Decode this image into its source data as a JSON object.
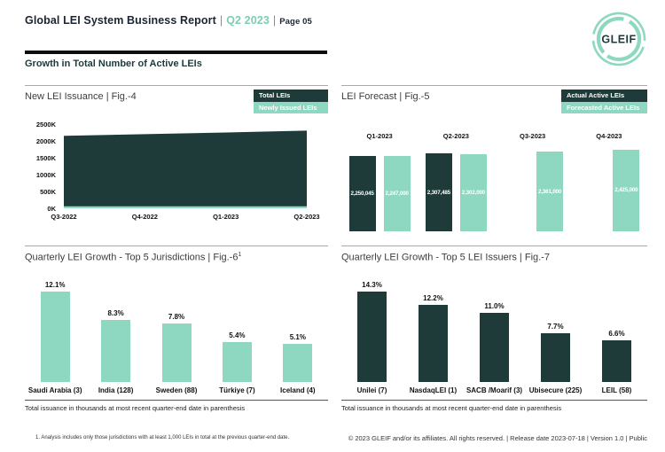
{
  "header": {
    "title": "Global LEI System Business Report",
    "sep": "|",
    "period": "Q2 2023",
    "page": "Page 05",
    "logo_text": "GLEIF"
  },
  "section": {
    "title": "Growth in Total Number of Active LEIs"
  },
  "colors": {
    "dark": "#1e3a39",
    "mint": "#8ed8c1",
    "accent_text": "#7fccb4"
  },
  "chart_data": [
    {
      "type": "area",
      "title": "New LEI Issuance | Fig.-4",
      "legend": [
        {
          "label": "Total LEIs",
          "color": "#1e3a39"
        },
        {
          "label": "Newly Issued LEIs",
          "color": "#8ed8c1"
        }
      ],
      "x": [
        "Q3-2022",
        "Q4-2022",
        "Q1-2023",
        "Q2-2023"
      ],
      "series": [
        {
          "name": "Total LEIs",
          "color": "#1e3a39",
          "values": [
            2150000,
            2200000,
            2250045,
            2307485
          ]
        },
        {
          "name": "Newly Issued LEIs",
          "color": "#8ed8c1",
          "values": [
            60000,
            60000,
            60000,
            60000
          ]
        }
      ],
      "ylim": [
        0,
        2500000
      ],
      "yticks": [
        "2500K",
        "2000K",
        "1500K",
        "1000K",
        "500K",
        "0K"
      ],
      "legend_position": "top-right",
      "grid": false
    },
    {
      "type": "grouped-bar",
      "title": "LEI Forecast | Fig.-5",
      "legend": [
        {
          "label": "Actual Active LEIs",
          "color": "#1e3a39"
        },
        {
          "label": "Forecasted Active LEIs",
          "color": "#8ed8c1"
        }
      ],
      "categories": [
        "Q1-2023",
        "Q2-2023",
        "Q3-2023",
        "Q4-2023"
      ],
      "series": [
        {
          "name": "Actual Active LEIs",
          "color": "#1e3a39",
          "values": [
            2250045,
            2307485,
            null,
            null
          ],
          "labels": [
            "2,250,045",
            "2,307,485",
            "",
            ""
          ]
        },
        {
          "name": "Forecasted Active LEIs",
          "color": "#8ed8c1",
          "values": [
            2247000,
            2302000,
            2361000,
            2425000
          ],
          "labels": [
            "2,247,000",
            "2,302,000",
            "2,361,000",
            "2,425,000"
          ]
        }
      ],
      "ylim": [
        0,
        2500000
      ],
      "legend_position": "top-right",
      "grid": false
    },
    {
      "type": "bar",
      "title_main": "Quarterly LEI Growth - Top 5 Jurisdictions | Fig.-6",
      "title_sup": "1",
      "categories": [
        "Saudi Arabia (3)",
        "India (128)",
        "Sweden (88)",
        "Türkiye (7)",
        "Iceland (4)"
      ],
      "values": [
        12.1,
        8.3,
        7.8,
        5.4,
        5.1
      ],
      "labels": [
        "12.1%",
        "8.3%",
        "7.8%",
        "5.4%",
        "5.1%"
      ],
      "bar_color": "#8ed8c1",
      "note": "Total issuance in thousands at most recent quarter-end date in parenthesis",
      "grid": false
    },
    {
      "type": "bar",
      "title_main": "Quarterly LEI Growth - Top 5 LEI Issuers | Fig.-7",
      "title_sup": "",
      "categories": [
        "Unilei (7)",
        "NasdaqLEI (1)",
        "SACB /Moarif (3)",
        "Ubisecure (225)",
        "LEIL (58)"
      ],
      "values": [
        14.3,
        12.2,
        11.0,
        7.7,
        6.6
      ],
      "labels": [
        "14.3%",
        "12.2%",
        "11.0%",
        "7.7%",
        "6.6%"
      ],
      "bar_color": "#1e3a39",
      "note": "Total issuance in thousands at most recent quarter-end date in parenthesis",
      "grid": false
    }
  ],
  "footnote": "1. Analysis includes only those jurisdictions with at least 1,000 LEIs in total at the previous quarter-end date.",
  "footer": "© 2023 GLEIF and/or its affiliates. All rights reserved. | Release date 2023-07-18 | Version 1.0 | Public"
}
